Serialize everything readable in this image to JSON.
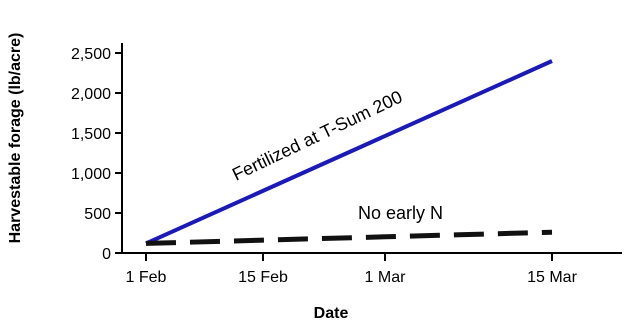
{
  "chart_data": {
    "type": "line",
    "xlabel": "Date",
    "ylabel": "Harvestable forage (lb/acre)",
    "x_categories": [
      "1 Feb",
      "15 Feb",
      "1 Mar",
      "15 Mar"
    ],
    "y_ticks": [
      "0",
      "500",
      "1,000",
      "1,500",
      "2,000",
      "2,500"
    ],
    "ylim": [
      0,
      2500
    ],
    "grid": false,
    "series": [
      {
        "name": "Fertilized at T-Sum 200",
        "style": "solid",
        "color": "#1c1ab5",
        "points": [
          [
            "1 Feb",
            120
          ],
          [
            "15 Mar",
            2400
          ]
        ]
      },
      {
        "name": "No early N",
        "style": "dashed",
        "color": "#111111",
        "points": [
          [
            "1 Feb",
            120
          ],
          [
            "15 Mar",
            260
          ]
        ]
      }
    ]
  }
}
